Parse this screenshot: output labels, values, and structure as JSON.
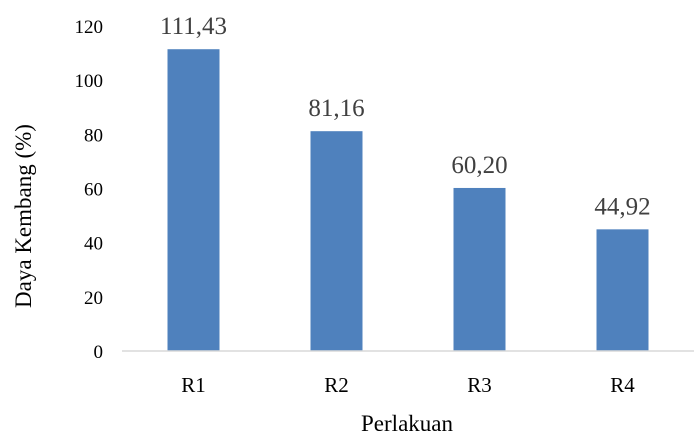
{
  "chart_data": {
    "type": "bar",
    "categories": [
      "R1",
      "R2",
      "R3",
      "R4"
    ],
    "values": [
      111.43,
      81.16,
      60.2,
      44.92
    ],
    "value_labels": [
      "111,43",
      "81,16",
      "60,20",
      "44,92"
    ],
    "xlabel": "Perlakuan",
    "ylabel": "Daya Kembang (%)",
    "ylim": [
      0,
      120
    ],
    "yticks": [
      0,
      20,
      40,
      60,
      80,
      100,
      120
    ],
    "grid": false,
    "legend": "none",
    "bar_color": "#4f81bd"
  }
}
